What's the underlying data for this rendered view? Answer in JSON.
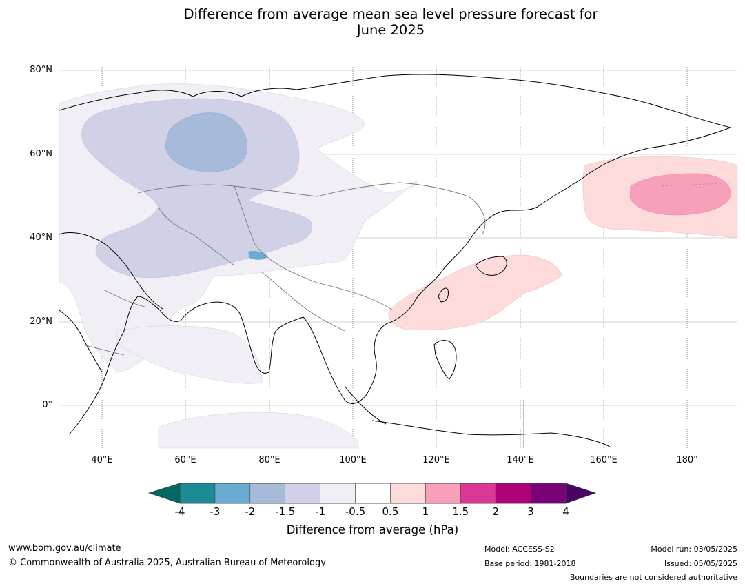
{
  "title_line1": "Difference from average mean sea level pressure forecast for",
  "title_line2": "June 2025",
  "lat_labels": [
    "80°N",
    "60°N",
    "40°N",
    "20°N",
    "0°"
  ],
  "lon_labels": [
    "40°E",
    "60°E",
    "80°E",
    "100°E",
    "120°E",
    "140°E",
    "160°E",
    "180°"
  ],
  "colorbar": {
    "ticks": [
      "-4",
      "-3",
      "-2",
      "-1.5",
      "-1",
      "-0.5",
      "0.5",
      "1",
      "1.5",
      "2",
      "3",
      "4"
    ],
    "colors": [
      "#1b8c96",
      "#6aabd2",
      "#a6bbd9",
      "#d0d1e6",
      "#f2eef6",
      "#ffffff",
      "#fddbdb",
      "#f89fba",
      "#dc3696",
      "#ae0179",
      "#7a0177"
    ],
    "low_extend_color": "#03685f",
    "high_extend_color": "#4a0163",
    "label": "Difference from average (hPa)"
  },
  "footer": {
    "url": "www.bom.gov.au/climate",
    "copyright": "© Commonwealth of Australia 2025, Australian Bureau of Meteorology",
    "model": "Model: ACCESS-S2",
    "base_period": "Base period: 1981-2018",
    "model_run": "Model run: 03/05/2025",
    "issued": "Issued: 05/05/2025",
    "disclaimer": "Boundaries are not considered authoritative"
  }
}
